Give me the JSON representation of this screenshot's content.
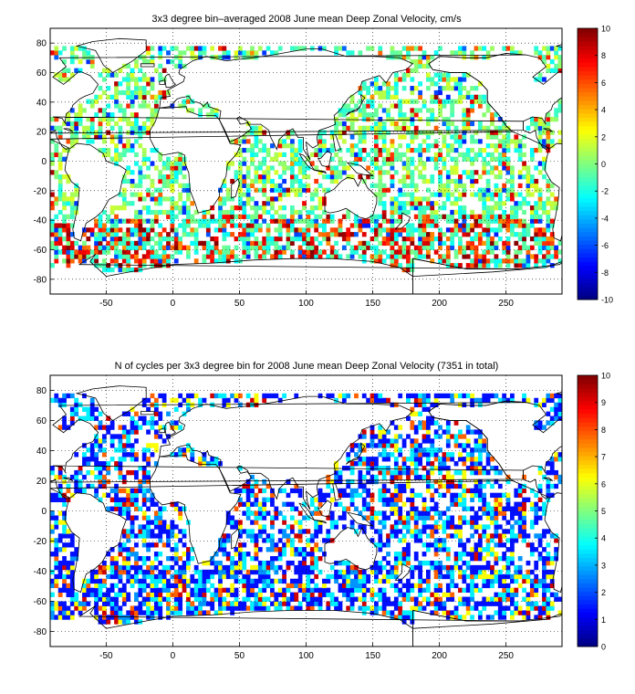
{
  "chart_data": [
    {
      "type": "heatmap",
      "title": "3x3 degree bin–averaged 2008 June mean Deep Zonal Velocity, cm/s",
      "xlabel": "",
      "ylabel": "",
      "xlim": [
        -92,
        292
      ],
      "ylim": [
        -90,
        90
      ],
      "bin_size_deg": 3,
      "x_ticks": [
        -50,
        0,
        50,
        100,
        150,
        200,
        250
      ],
      "y_ticks": [
        80,
        60,
        40,
        20,
        0,
        -20,
        -40,
        -60,
        -80
      ],
      "grid": "on (dotted)",
      "colorbar": {
        "placement": "right",
        "range": [
          -10,
          10
        ],
        "ticks": [
          10,
          8,
          6,
          4,
          2,
          0,
          -2,
          -4,
          -6,
          -8,
          -10
        ],
        "colormap": "jet"
      },
      "colors": {
        "land_outline": "#000000",
        "grid": "#000000"
      }
    },
    {
      "type": "heatmap",
      "title": "N of cycles per 3x3 degree bin for 2008 June mean Deep Zonal Velocity (7351 in total)",
      "xlabel": "",
      "ylabel": "",
      "xlim": [
        -92,
        292
      ],
      "ylim": [
        -90,
        90
      ],
      "bin_size_deg": 3,
      "total_cycles": 7351,
      "x_ticks": [
        -50,
        0,
        50,
        100,
        150,
        200,
        250
      ],
      "y_ticks": [
        80,
        60,
        40,
        20,
        0,
        -20,
        -40,
        -60,
        -80
      ],
      "grid": "on (dotted)",
      "colorbar": {
        "placement": "right",
        "range": [
          0,
          10
        ],
        "ticks": [
          10,
          9,
          8,
          7,
          6,
          5,
          4,
          3,
          2,
          1,
          0
        ],
        "colormap": "jet"
      },
      "colors": {
        "land_outline": "#000000",
        "grid": "#000000"
      }
    }
  ]
}
